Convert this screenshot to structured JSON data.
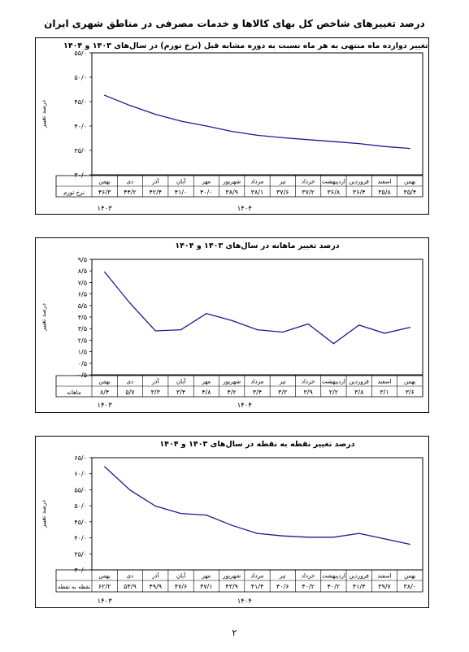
{
  "page": {
    "title": "درصد تغییرهای شاخص کل بهای کالاها و خدمات مصرفی در مناطق شهری ایران",
    "number": "۲"
  },
  "colors": {
    "line": "#1a1a8c",
    "border": "#000000"
  },
  "chart_data": [
    {
      "type": "line",
      "title": "درصد تغییر دوازده ماه منتهی به هر ماه نسبت به دوره مشابه قبل (نرخ تورم) در سال‌های ۱۴۰۳ و ۱۴۰۴",
      "ylabel": "درصد تغییر",
      "ylim": [
        30,
        55
      ],
      "yticks": [
        30,
        35,
        40,
        45,
        50,
        55
      ],
      "ytick_labels": [
        "۳۰/۰",
        "۳۵/۰",
        "۴۰/۰",
        "۴۵/۰",
        "۵۰/۰",
        "۵۵/۰"
      ],
      "categories": [
        "بهمن",
        "اسفند",
        "فروردین",
        "اردیبهشت",
        "خرداد",
        "تیر",
        "مرداد",
        "شهریور",
        "مهر",
        "آبان",
        "آذر",
        "دی",
        "بهمن"
      ],
      "values": [
        35.4,
        35.8,
        36.4,
        36.8,
        37.2,
        37.6,
        38.1,
        38.9,
        40.0,
        41.0,
        42.4,
        44.2,
        46.3
      ],
      "value_labels": [
        "۳۵/۴",
        "۳۵/۸",
        "۳۶/۴",
        "۳۶/۸",
        "۳۷/۲",
        "۳۷/۶",
        "۳۸/۱",
        "۳۸/۹",
        "۴۰/۰",
        "۴۱/۰",
        "۴۲/۴",
        "۴۴/۲",
        "۴۶/۳"
      ],
      "row_label": "نرخ تورم",
      "years": [
        "۱۴۰۳",
        "۱۴۰۴"
      ],
      "grid": false
    },
    {
      "type": "line",
      "title": "درصد تغییر ماهانه در سال‌های ۱۴۰۳ و ۱۴۰۴",
      "ylabel": "درصد تغییر",
      "ylim": [
        -0.5,
        9.5
      ],
      "yticks": [
        -0.5,
        0.5,
        1.5,
        2.5,
        3.5,
        4.5,
        5.5,
        6.5,
        7.5,
        8.5,
        9.5
      ],
      "ytick_labels": [
        "-۰/۵",
        "۰/۵",
        "۱/۵",
        "۲/۵",
        "۳/۵",
        "۴/۵",
        "۵/۵",
        "۶/۵",
        "۷/۵",
        "۸/۵",
        "۹/۵"
      ],
      "categories": [
        "بهمن",
        "اسفند",
        "فروردین",
        "اردیبهشت",
        "خرداد",
        "تیر",
        "مرداد",
        "شهریور",
        "مهر",
        "آبان",
        "آذر",
        "دی",
        "بهمن"
      ],
      "values": [
        3.6,
        3.1,
        3.8,
        2.2,
        3.9,
        3.2,
        3.4,
        4.2,
        4.8,
        3.4,
        3.3,
        5.7,
        8.4
      ],
      "value_labels": [
        "۳/۶",
        "۳/۱",
        "۳/۸",
        "۲/۲",
        "۳/۹",
        "۳/۲",
        "۳/۴",
        "۴/۲",
        "۴/۸",
        "۳/۴",
        "۳/۳",
        "۵/۷",
        "۸/۴"
      ],
      "row_label": "ماهانه",
      "years": [
        "۱۴۰۳",
        "۱۴۰۴"
      ],
      "grid": false
    },
    {
      "type": "line",
      "title": "درصد تغییر نقطه به نقطه در سال‌های ۱۴۰۳ و ۱۴۰۴",
      "ylabel": "درصد تغییر",
      "ylim": [
        30,
        65
      ],
      "yticks": [
        30,
        35,
        40,
        45,
        50,
        55,
        60,
        65
      ],
      "ytick_labels": [
        "۳۰/۰",
        "۳۵/۰",
        "۴۰/۰",
        "۴۵/۰",
        "۵۰/۰",
        "۵۵/۰",
        "۶۰/۰",
        "۶۵/۰"
      ],
      "categories": [
        "بهمن",
        "اسفند",
        "فروردین",
        "اردیبهشت",
        "خرداد",
        "تیر",
        "مرداد",
        "شهریور",
        "مهر",
        "آبان",
        "آذر",
        "دی",
        "بهمن"
      ],
      "values": [
        38.0,
        39.7,
        41.4,
        40.2,
        40.2,
        40.6,
        41.4,
        43.9,
        47.1,
        47.6,
        49.9,
        54.9,
        62.2
      ],
      "value_labels": [
        "۳۸/۰",
        "۳۹/۷",
        "۴۱/۴",
        "۴۰/۲",
        "۴۰/۲",
        "۴۰/۶",
        "۴۱/۴",
        "۴۳/۹",
        "۴۷/۱",
        "۴۷/۶",
        "۴۹/۹",
        "۵۴/۹",
        "۶۲/۲"
      ],
      "row_label": "نقطه به نقطه",
      "years": [
        "۱۴۰۳",
        "۱۴۰۴"
      ],
      "grid": false
    }
  ]
}
